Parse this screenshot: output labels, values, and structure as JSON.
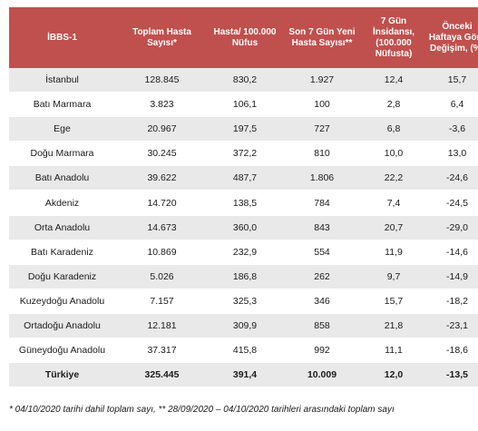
{
  "table": {
    "headers": [
      "İBBS-1",
      "Toplam Hasta Sayısı*",
      "Hasta/ 100.000 Nüfus",
      "Son 7 Gün Yeni Hasta Sayısı**",
      "7 Gün İnsidansı, (100.000 Nüfusta)",
      "Önceki Haftaya Göre Değişim, (%)"
    ],
    "rows": [
      [
        "İstanbul",
        "128.845",
        "830,2",
        "1.927",
        "12,4",
        "15,7"
      ],
      [
        "Batı Marmara",
        "3.823",
        "106,1",
        "100",
        "2,8",
        "6,4"
      ],
      [
        "Ege",
        "20.967",
        "197,5",
        "727",
        "6,8",
        "-3,6"
      ],
      [
        "Doğu Marmara",
        "30.245",
        "372,2",
        "810",
        "10,0",
        "13,0"
      ],
      [
        "Batı Anadolu",
        "39.622",
        "487,7",
        "1.806",
        "22,2",
        "-24,6"
      ],
      [
        "Akdeniz",
        "14.720",
        "138,5",
        "784",
        "7,4",
        "-24,5"
      ],
      [
        "Orta Anadolu",
        "14.673",
        "360,0",
        "843",
        "20,7",
        "-29,0"
      ],
      [
        "Batı Karadeniz",
        "10.869",
        "232,9",
        "554",
        "11,9",
        "-14,6"
      ],
      [
        "Doğu Karadeniz",
        "5.026",
        "186,8",
        "262",
        "9,7",
        "-14,9"
      ],
      [
        "Kuzeydoğu Anadolu",
        "7.157",
        "325,3",
        "346",
        "15,7",
        "-18,2"
      ],
      [
        "Ortadoğu Anadolu",
        "12.181",
        "309,9",
        "858",
        "21,8",
        "-23,1"
      ],
      [
        "Güneydoğu Anadolu",
        "37.317",
        "415,8",
        "992",
        "11,1",
        "-18,6"
      ]
    ],
    "total": [
      "Türkiye",
      "325.445",
      "391,4",
      "10.009",
      "12,0",
      "-13,5"
    ]
  },
  "colors": {
    "header_bg": "#c0504d",
    "stripe": "#e9e9e9"
  },
  "footnote": "* 04/10/2020 tarihi dahil toplam sayı, ** 28/09/2020 – 04/10/2020 tarihleri arasındaki toplam sayı"
}
